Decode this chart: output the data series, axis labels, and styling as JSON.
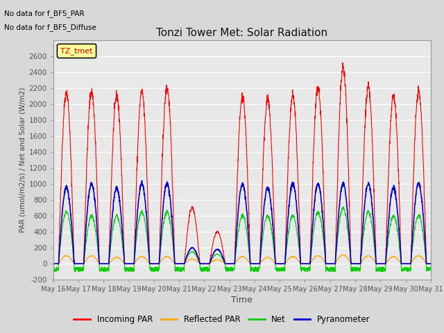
{
  "title": "Tonzi Tower Met: Solar Radiation",
  "xlabel": "Time",
  "ylabel": "PAR (umol/m2/s) / Net and Solar (W/m2)",
  "ylim": [
    -200,
    2800
  ],
  "yticks": [
    -200,
    0,
    200,
    400,
    600,
    800,
    1000,
    1200,
    1400,
    1600,
    1800,
    2000,
    2200,
    2400,
    2600
  ],
  "annotations": [
    "No data for f_BF5_PAR",
    "No data for f_BF5_Diffuse"
  ],
  "legend_label": "TZ_tmet",
  "legend_entries": [
    "Incoming PAR",
    "Reflected PAR",
    "Net",
    "Pyranometer"
  ],
  "legend_colors": [
    "#ff0000",
    "#ffa500",
    "#00cc00",
    "#0000cc"
  ],
  "line_colors": {
    "incoming": "#ff0000",
    "reflected": "#ffa500",
    "net": "#00cc00",
    "pyranometer": "#0000cc"
  },
  "n_days": 15,
  "day_start": 16,
  "background_color": "#d8d8d8",
  "plot_bg_color": "#e8e8e8",
  "incoming_peaks": [
    2150,
    2150,
    2100,
    2150,
    2200,
    700,
    400,
    2100,
    2050,
    2100,
    2200,
    2450,
    2200,
    2100,
    2150
  ],
  "pyranometer_peaks": [
    950,
    1000,
    950,
    1000,
    1000,
    200,
    180,
    1000,
    950,
    1000,
    1000,
    1000,
    1000,
    950,
    1000
  ],
  "net_peaks": [
    650,
    600,
    600,
    650,
    650,
    150,
    120,
    600,
    600,
    600,
    650,
    700,
    650,
    600,
    600
  ],
  "reflected_peaks": [
    100,
    100,
    80,
    90,
    90,
    60,
    50,
    90,
    80,
    90,
    100,
    110,
    100,
    90,
    100
  ],
  "net_min": -100,
  "figsize": [
    6.4,
    4.8
  ],
  "dpi": 100
}
